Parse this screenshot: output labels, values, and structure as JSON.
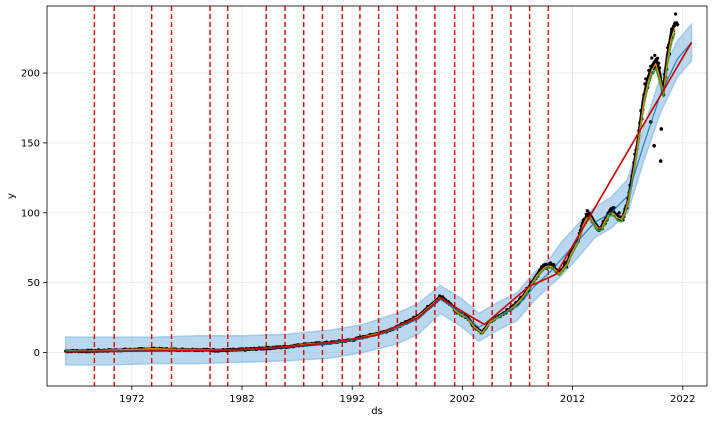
{
  "chart_data": {
    "type": "line",
    "xlabel": "ds",
    "ylabel": "y",
    "xlim": [
      1964.3,
      2024.2
    ],
    "ylim": [
      -24,
      248
    ],
    "x_ticks": [
      1972,
      1982,
      1992,
      2002,
      2012,
      2022
    ],
    "y_ticks": [
      0,
      50,
      100,
      150,
      200
    ],
    "grid": true,
    "changepoints": [
      1968.6,
      1970.4,
      1973.8,
      1975.6,
      1979.1,
      1980.7,
      1984.2,
      1985.9,
      1987.6,
      1989.3,
      1991.1,
      1992.7,
      1994.4,
      1996.1,
      1997.8,
      1999.5,
      2001.3,
      2003.0,
      2004.7,
      2006.4,
      2008.1,
      2009.8
    ],
    "observed": {
      "x": [
        1966.0,
        1968.0,
        1970.0,
        1972.0,
        1974.0,
        1976.0,
        1978.0,
        1980.0,
        1982.0,
        1984.0,
        1986.0,
        1988.0,
        1990.0,
        1991.0,
        1992.0,
        1993.0,
        1994.0,
        1995.0,
        1996.0,
        1997.0,
        1998.0,
        1999.0,
        2000.0,
        2001.0,
        2001.5,
        2002.5,
        2003.0,
        2003.8,
        2004.5,
        2005.5,
        2006.5,
        2007.5,
        2008.3,
        2008.8,
        2009.5,
        2010.0,
        2010.8,
        2011.5,
        2012.0,
        2012.5,
        2013.0,
        2013.5,
        2014.0,
        2014.5,
        2015.0,
        2015.5,
        2016.0,
        2016.5,
        2017.0,
        2017.5,
        2018.0,
        2018.4,
        2018.8,
        2019.2,
        2019.6,
        2019.9,
        2020.2,
        2020.6,
        2021.0,
        2021.3,
        2021.6
      ],
      "y": [
        1,
        1,
        1.5,
        2,
        2.5,
        2,
        2,
        1.5,
        2,
        3,
        4,
        6,
        7,
        8,
        9,
        11,
        13,
        15,
        18,
        22,
        26,
        33,
        40,
        34,
        29,
        25,
        19,
        14,
        22,
        27,
        32,
        40,
        50,
        56,
        62,
        63,
        57,
        64,
        74,
        80,
        94,
        100,
        93,
        88,
        96,
        103,
        98,
        96,
        107,
        130,
        155,
        180,
        195,
        205,
        210,
        200,
        185,
        212,
        230,
        236,
        234
      ]
    },
    "forecast": {
      "x": [
        1966.0,
        1970.0,
        1974.0,
        1978.0,
        1982.0,
        1986.0,
        1990.0,
        1993.0,
        1996.0,
        1998.0,
        2000.0,
        2002.0,
        2003.5,
        2005.0,
        2007.0,
        2008.5,
        2010.0,
        2011.0,
        2012.5,
        2014.0,
        2015.5,
        2017.0,
        2018.5,
        2020.0,
        2021.5,
        2022.8
      ],
      "yhat": [
        1,
        1.2,
        1.5,
        1.8,
        2.2,
        3.5,
        6,
        10,
        17,
        24,
        38,
        28,
        18,
        25,
        33,
        47,
        58,
        67,
        80,
        93,
        100,
        112,
        150,
        185,
        210,
        222
      ],
      "lower": [
        -9,
        -9,
        -8,
        -8,
        -7,
        -6,
        -4,
        0,
        6,
        13,
        28,
        18,
        8,
        15,
        23,
        37,
        48,
        55,
        68,
        82,
        89,
        100,
        138,
        172,
        197,
        209
      ],
      "upper": [
        11,
        11,
        11,
        12,
        12,
        13,
        16,
        20,
        28,
        35,
        48,
        38,
        28,
        35,
        43,
        57,
        68,
        79,
        92,
        104,
        111,
        124,
        162,
        198,
        223,
        235
      ]
    },
    "trend": {
      "x": [
        1966.0,
        1980.0,
        1986.0,
        1990.0,
        1994.0,
        1998.0,
        2000.0,
        2002.5,
        2004.0,
        2008.0,
        2010.5,
        2022.8
      ],
      "y": [
        0.5,
        1.5,
        4,
        7,
        12,
        25,
        39,
        27,
        20,
        47,
        56,
        222
      ]
    },
    "colors": {
      "observed": "#000000",
      "forecast": "#0072B2",
      "interval": "#7fb6e0",
      "trend": "#cc0000",
      "changepoint": "#e00000",
      "component_green": "#3a9a2a",
      "component_orange": "#e08a00",
      "grid": "#e6e6e6"
    }
  }
}
